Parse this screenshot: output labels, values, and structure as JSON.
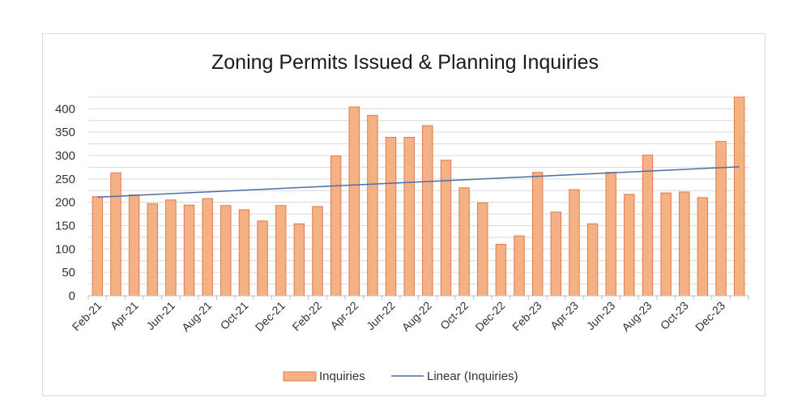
{
  "chart_data": {
    "type": "bar",
    "title": "Zoning Permits Issued & Planning Inquiries",
    "xlabel": "",
    "ylabel": "",
    "ylim": [
      0,
      430
    ],
    "ytick_values": [
      0,
      50,
      100,
      150,
      200,
      250,
      300,
      350,
      400
    ],
    "categories": [
      "Feb-21",
      "Mar-21",
      "Apr-21",
      "May-21",
      "Jun-21",
      "Jul-21",
      "Aug-21",
      "Sep-21",
      "Oct-21",
      "Nov-21",
      "Dec-21",
      "Jan-22",
      "Feb-22",
      "Mar-22",
      "Apr-22",
      "May-22",
      "Jun-22",
      "Jul-22",
      "Aug-22",
      "Sep-22",
      "Oct-22",
      "Nov-22",
      "Dec-22",
      "Jan-23",
      "Feb-23",
      "Mar-23",
      "Apr-23",
      "May-23",
      "Jun-23",
      "Jul-23",
      "Aug-23",
      "Sep-23",
      "Oct-23",
      "Nov-23",
      "Dec-23",
      "Jan-24"
    ],
    "x_tick_labels": [
      "Feb-21",
      "Apr-21",
      "Jun-21",
      "Aug-21",
      "Oct-21",
      "Dec-21",
      "Feb-22",
      "Apr-22",
      "Jun-22",
      "Aug-22",
      "Oct-22",
      "Dec-22",
      "Feb-23",
      "Apr-23",
      "Jun-23",
      "Aug-23",
      "Oct-23",
      "Dec-23"
    ],
    "series": [
      {
        "name": "Inquiries",
        "type": "bar",
        "color": "#f4b183",
        "stroke": "#e07b4a",
        "values": [
          212,
          263,
          216,
          197,
          205,
          194,
          208,
          193,
          184,
          160,
          193,
          154,
          191,
          299,
          404,
          386,
          339,
          339,
          364,
          290,
          231,
          199,
          110,
          128,
          264,
          179,
          227,
          154,
          264,
          217,
          301,
          220,
          222,
          210,
          330,
          425
        ]
      },
      {
        "name": "Linear (Inquiries)",
        "type": "trendline",
        "color": "#4a6fa5",
        "start": 211,
        "end": 276
      }
    ],
    "legend": {
      "position": "bottom",
      "items": [
        "Inquiries",
        "Linear (Inquiries)"
      ]
    },
    "grid": true
  }
}
